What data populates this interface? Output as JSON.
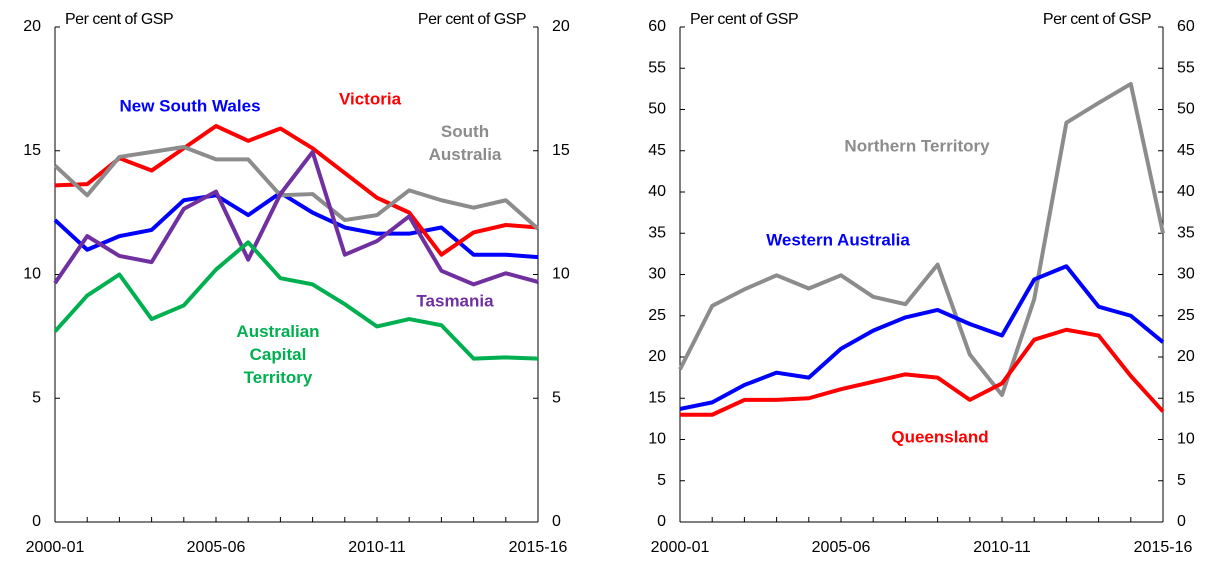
{
  "chart_data": [
    {
      "type": "line",
      "ylabel": "Per cent of GSP",
      "y2label": "Per cent of GSP",
      "categories": [
        "2000-01",
        null,
        null,
        null,
        null,
        "2005-06",
        null,
        null,
        null,
        null,
        "2010-11",
        null,
        null,
        null,
        null,
        "2015-16"
      ],
      "ylim": [
        0,
        20
      ],
      "yticks": [
        0,
        5,
        10,
        15,
        20
      ],
      "y2lim": [
        0,
        20
      ],
      "y2ticks": [
        0,
        5,
        10,
        15,
        20
      ],
      "series": [
        {
          "name": "New South Wales",
          "color": "#0000ff",
          "values": [
            12.2,
            11.0,
            11.55,
            11.8,
            13.0,
            13.2,
            12.4,
            13.3,
            12.5,
            11.9,
            11.65,
            11.65,
            11.9,
            10.8,
            10.8,
            10.7
          ]
        },
        {
          "name": "Victoria",
          "color": "#ff0000",
          "values": [
            13.6,
            13.65,
            14.7,
            14.2,
            15.1,
            16.0,
            15.4,
            15.9,
            15.1,
            14.1,
            13.1,
            12.5,
            10.8,
            11.7,
            12.0,
            11.9
          ]
        },
        {
          "name": "South Australia",
          "color": "#8c8c8c",
          "values": [
            14.4,
            13.2,
            14.75,
            14.95,
            15.15,
            14.65,
            14.65,
            13.2,
            13.25,
            12.2,
            12.4,
            13.4,
            13.0,
            12.7,
            13.0,
            11.85
          ]
        },
        {
          "name": "Tasmania",
          "color": "#7030a0",
          "values": [
            9.65,
            11.55,
            10.75,
            10.5,
            12.65,
            13.35,
            10.6,
            13.25,
            14.95,
            10.8,
            11.35,
            12.35,
            10.15,
            9.6,
            10.05,
            9.7
          ]
        },
        {
          "name": "Australian Capital Territory",
          "color": "#00b050",
          "values": [
            7.7,
            9.15,
            10.0,
            8.2,
            8.75,
            10.2,
            11.3,
            9.85,
            9.6,
            8.8,
            7.9,
            8.2,
            7.95,
            6.6,
            6.65,
            6.6
          ]
        }
      ]
    },
    {
      "type": "line",
      "ylabel": "Per cent of GSP",
      "y2label": "Per cent of GSP",
      "categories": [
        "2000-01",
        null,
        null,
        null,
        null,
        "2005-06",
        null,
        null,
        null,
        null,
        "2010-11",
        null,
        null,
        null,
        null,
        "2015-16"
      ],
      "ylim": [
        0,
        60
      ],
      "yticks": [
        0,
        5,
        10,
        15,
        20,
        25,
        30,
        35,
        40,
        45,
        50,
        55,
        60
      ],
      "y2lim": [
        0,
        60
      ],
      "y2ticks": [
        0,
        5,
        10,
        15,
        20,
        25,
        30,
        35,
        40,
        45,
        50,
        55,
        60
      ],
      "series": [
        {
          "name": "Northern Territory",
          "color": "#8c8c8c",
          "values": [
            18.5,
            26.2,
            28.2,
            29.9,
            28.3,
            29.9,
            27.3,
            26.4,
            31.2,
            20.3,
            15.4,
            27.0,
            48.4,
            50.8,
            53.1,
            35.0
          ]
        },
        {
          "name": "Western Australia",
          "color": "#0000ff",
          "values": [
            13.7,
            14.5,
            16.6,
            18.1,
            17.5,
            21.0,
            23.2,
            24.8,
            25.7,
            24.0,
            22.6,
            29.4,
            31.0,
            26.1,
            25.0,
            21.8
          ]
        },
        {
          "name": "Queensland",
          "color": "#ff0000",
          "values": [
            13.0,
            13.0,
            14.8,
            14.8,
            15.0,
            16.1,
            17.0,
            17.9,
            17.5,
            14.8,
            16.8,
            22.1,
            23.3,
            22.6,
            17.7,
            13.4
          ]
        }
      ]
    }
  ]
}
